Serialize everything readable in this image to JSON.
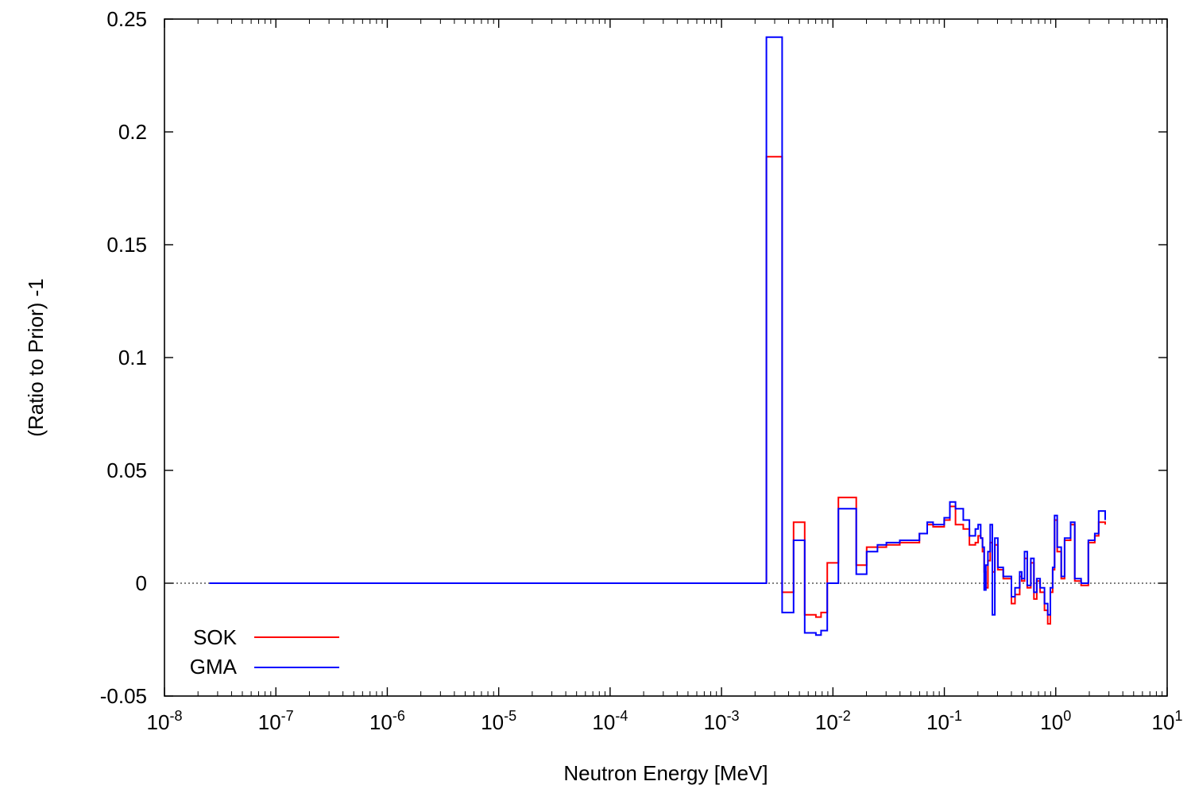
{
  "chart_data": {
    "type": "line",
    "line_style": "histogram-step",
    "xlabel": "Neutron Energy [MeV]",
    "ylabel": "(Ratio to Prior) -1",
    "x_scale": "log",
    "xlim": [
      1e-08,
      10
    ],
    "ylim": [
      -0.05,
      0.25
    ],
    "x_ticks": [
      {
        "base": "10",
        "exp": "-8"
      },
      {
        "base": "10",
        "exp": "-7"
      },
      {
        "base": "10",
        "exp": "-6"
      },
      {
        "base": "10",
        "exp": "-5"
      },
      {
        "base": "10",
        "exp": "-4"
      },
      {
        "base": "10",
        "exp": "-3"
      },
      {
        "base": "10",
        "exp": "-2"
      },
      {
        "base": "10",
        "exp": "-1"
      },
      {
        "base": "10",
        "exp": "0"
      },
      {
        "base": "10",
        "exp": "1"
      }
    ],
    "y_ticks": [
      "0.25",
      "0.2",
      "0.15",
      "0.1",
      "0.05",
      "0",
      "-0.05"
    ],
    "reference_line": {
      "y": 0,
      "style": "dotted"
    },
    "grid": false,
    "legend_position": "bottom-left",
    "series": [
      {
        "name": "SOK",
        "color": "#ff0000",
        "x": [
          2.53e-08,
          0.00253,
          0.0035,
          0.00443,
          0.00558,
          0.00703,
          0.00782,
          0.0089,
          0.0112,
          0.0162,
          0.0201,
          0.0251,
          0.0302,
          0.0398,
          0.0501,
          0.0598,
          0.0702,
          0.0792,
          0.0891,
          0.0998,
          0.112,
          0.126,
          0.148,
          0.168,
          0.19,
          0.201,
          0.212,
          0.22,
          0.228,
          0.236,
          0.246,
          0.258,
          0.27,
          0.284,
          0.302,
          0.338,
          0.4,
          0.431,
          0.475,
          0.495,
          0.525,
          0.555,
          0.597,
          0.637,
          0.676,
          0.724,
          0.792,
          0.848,
          0.894,
          0.938,
          0.976,
          1.03,
          1.12,
          1.2,
          1.36,
          1.48,
          1.69,
          1.96,
          2.24,
          2.43,
          2.78
        ],
        "values": [
          0,
          0.189,
          -0.004,
          0.027,
          -0.014,
          -0.015,
          -0.013,
          0.009,
          0.038,
          0.008,
          0.016,
          0.016,
          0.017,
          0.018,
          0.018,
          0.022,
          0.026,
          0.025,
          0.025,
          0.028,
          0.034,
          0.026,
          0.024,
          0.017,
          0.018,
          0.021,
          0.02,
          0.014,
          0.005,
          -0.002,
          0.01,
          0.018,
          0.005,
          0.017,
          0.006,
          0.002,
          -0.009,
          -0.005,
          0.003,
          0.001,
          0.011,
          -0.002,
          0.009,
          -0.007,
          0.001,
          -0.004,
          -0.012,
          -0.018,
          -0.004,
          0.006,
          0.028,
          0.014,
          0.002,
          0.019,
          0.026,
          0.001,
          -0.001,
          0.018,
          0.021,
          0.027,
          0.026
        ]
      },
      {
        "name": "GMA",
        "color": "#0000ff",
        "x": [
          2.53e-08,
          0.00253,
          0.0035,
          0.00443,
          0.00558,
          0.00703,
          0.00782,
          0.0089,
          0.0112,
          0.0162,
          0.0201,
          0.0251,
          0.0302,
          0.0398,
          0.0501,
          0.0598,
          0.0702,
          0.0792,
          0.0891,
          0.0998,
          0.112,
          0.126,
          0.148,
          0.168,
          0.19,
          0.201,
          0.212,
          0.22,
          0.228,
          0.236,
          0.246,
          0.258,
          0.27,
          0.284,
          0.302,
          0.338,
          0.4,
          0.431,
          0.475,
          0.495,
          0.525,
          0.555,
          0.597,
          0.637,
          0.676,
          0.724,
          0.792,
          0.848,
          0.894,
          0.938,
          0.976,
          1.03,
          1.12,
          1.2,
          1.36,
          1.48,
          1.69,
          1.96,
          2.24,
          2.43,
          2.78
        ],
        "values": [
          0,
          0.242,
          -0.013,
          0.019,
          -0.022,
          -0.023,
          -0.021,
          0.0,
          0.033,
          0.004,
          0.014,
          0.017,
          0.018,
          0.019,
          0.019,
          0.022,
          0.027,
          0.026,
          0.026,
          0.029,
          0.036,
          0.033,
          0.028,
          0.021,
          0.024,
          0.026,
          0.02,
          0.016,
          -0.003,
          0.008,
          0.014,
          0.026,
          -0.014,
          0.02,
          0.007,
          0.003,
          -0.006,
          -0.002,
          0.005,
          0.002,
          0.014,
          -0.001,
          0.011,
          -0.004,
          0.002,
          -0.002,
          -0.009,
          -0.014,
          -0.002,
          0.007,
          0.03,
          0.016,
          0.003,
          0.02,
          0.027,
          0.002,
          0.0,
          0.019,
          0.022,
          0.032,
          0.028
        ]
      }
    ]
  }
}
